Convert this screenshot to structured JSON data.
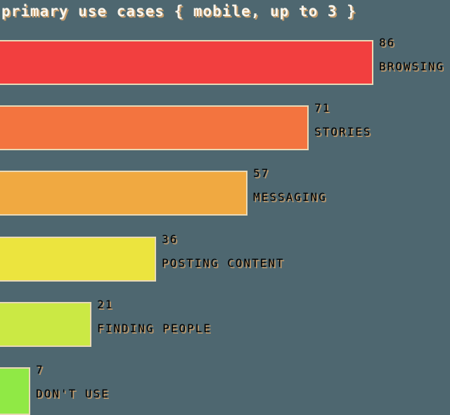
{
  "title": "primary use cases { mobile, up to 3 }",
  "theme": {
    "background": "#4e6770",
    "bar_border": "#e9d9b6",
    "label_text": "#f9f5ec",
    "label_shadow": "#d9a468"
  },
  "chart_data": {
    "type": "bar",
    "orientation": "horizontal",
    "title": "primary use cases { mobile, up to 3 }",
    "categories": [
      "BROWSING",
      "STORIES",
      "MESSAGING",
      "POSTING CONTENT",
      "FINDING PEOPLE",
      "DON'T USE"
    ],
    "values": [
      86,
      71,
      57,
      36,
      21,
      7
    ],
    "bar_colors": [
      "#f23f3f",
      "#f3743f",
      "#f0a941",
      "#ece43e",
      "#cbe944",
      "#90e945"
    ],
    "value_labels_shown": true,
    "value_label_position": "right-of-bar",
    "xlabel": "",
    "ylabel": "",
    "axis_lines": "none",
    "grid": false,
    "legend": "none",
    "xlim": [
      0,
      100
    ]
  }
}
